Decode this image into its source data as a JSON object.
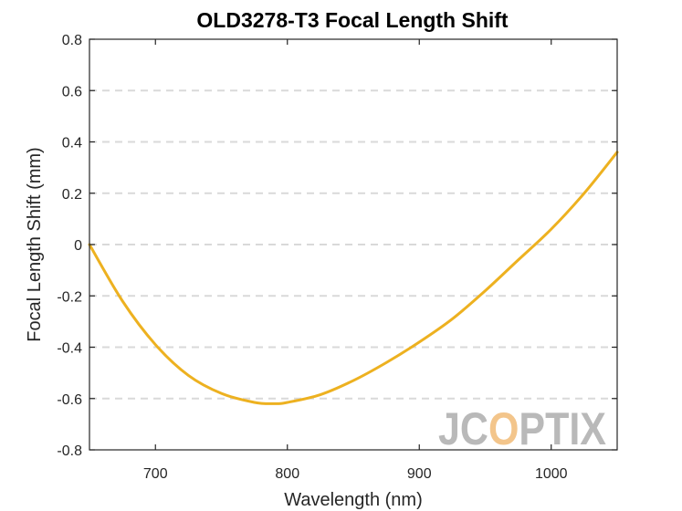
{
  "chart_data": {
    "type": "line",
    "title": "OLD3278-T3 Focal Length Shift",
    "xlabel": "Wavelength (nm)",
    "ylabel": "Focal Length Shift (mm)",
    "xlim": [
      650,
      1050
    ],
    "ylim": [
      -0.8,
      0.8
    ],
    "x_ticks": [
      700,
      800,
      900,
      1000
    ],
    "x_tick_labels": [
      "700",
      "800",
      "900",
      "1000"
    ],
    "y_ticks": [
      0.8,
      0.6,
      0.4,
      0.2,
      0,
      -0.2,
      -0.4,
      -0.6,
      -0.8
    ],
    "y_tick_labels": [
      "0.8",
      "0.6",
      "0.4",
      "0.2",
      "0",
      "-0.2",
      "-0.4",
      "-0.6",
      "-0.8"
    ],
    "grid": "horizontal dashed",
    "series": [
      {
        "color": "#EDB120",
        "x": [
          650,
          675,
          700,
          725,
          750,
          775,
          790,
          800,
          825,
          850,
          875,
          900,
          925,
          950,
          975,
          1000,
          1025,
          1050
        ],
        "y": [
          0.0,
          -0.22,
          -0.39,
          -0.51,
          -0.58,
          -0.615,
          -0.62,
          -0.615,
          -0.585,
          -0.53,
          -0.46,
          -0.38,
          -0.29,
          -0.18,
          -0.06,
          0.06,
          0.2,
          0.36
        ]
      }
    ]
  },
  "watermark": {
    "parts": [
      "JC",
      "O",
      "PTIX"
    ]
  }
}
